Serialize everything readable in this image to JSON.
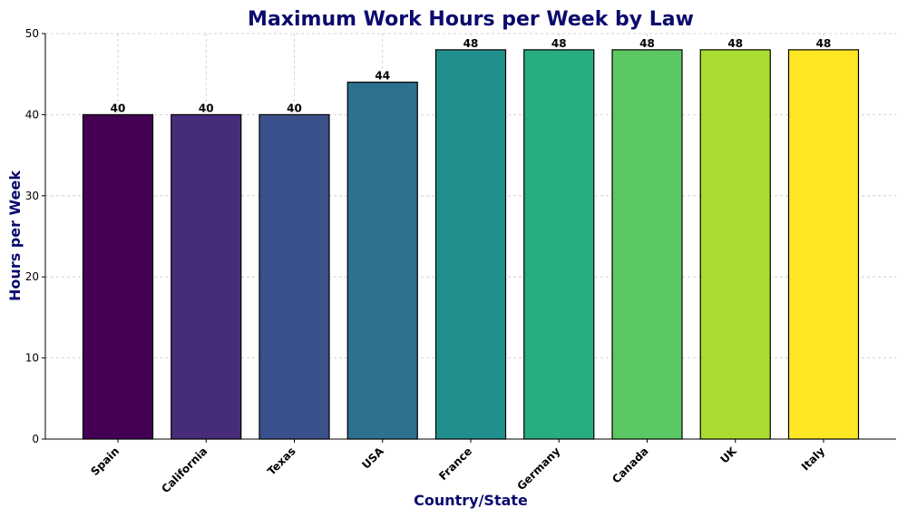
{
  "chart_data": {
    "type": "bar",
    "title": "Maximum Work Hours per Week by Law",
    "xlabel": "Country/State",
    "ylabel": "Hours per Week",
    "categories": [
      "Spain",
      "California",
      "Texas",
      "USA",
      "France",
      "Germany",
      "Canada",
      "UK",
      "Italy"
    ],
    "values": [
      40,
      40,
      40,
      44,
      48,
      48,
      48,
      48,
      48
    ],
    "colors": [
      "#440154",
      "#472c7a",
      "#3b518b",
      "#2c718e",
      "#21908d",
      "#27ad81",
      "#5cc863",
      "#aadc32",
      "#fde725"
    ],
    "ylim": [
      0,
      50
    ],
    "yticks": [
      0,
      10,
      20,
      30,
      40,
      50
    ],
    "grid": true,
    "legend": "none"
  }
}
